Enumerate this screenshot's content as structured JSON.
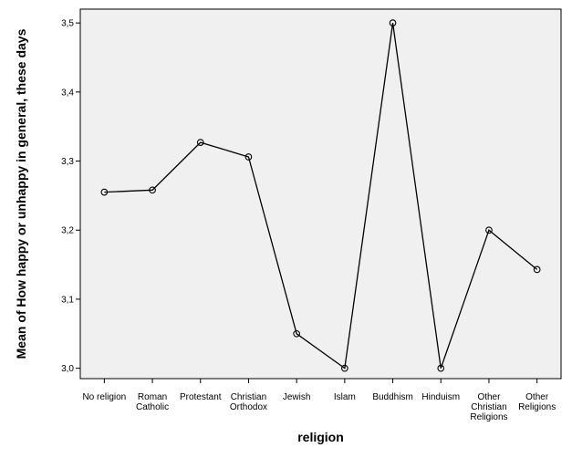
{
  "chart_data": {
    "type": "line",
    "title": "",
    "xlabel": "religion",
    "ylabel": "Mean of How happy or unhappy in general, these days",
    "categories": [
      [
        "No religion"
      ],
      [
        "Roman",
        "Catholic"
      ],
      [
        "Protestant"
      ],
      [
        "Christian",
        "Orthodox"
      ],
      [
        "Jewish"
      ],
      [
        "Islam"
      ],
      [
        "Buddhism"
      ],
      [
        "Hinduism"
      ],
      [
        "Other",
        "Christian",
        "Religions"
      ],
      [
        "Other",
        "Religions"
      ]
    ],
    "values": [
      3.255,
      3.258,
      3.327,
      3.306,
      3.05,
      3.0,
      3.5,
      3.0,
      3.2,
      3.143
    ],
    "ylim": [
      2.985,
      3.52
    ],
    "yticks": [
      "3,0",
      "3,1",
      "3,2",
      "3,3",
      "3,4",
      "3,5"
    ],
    "ytick_values": [
      3.0,
      3.1,
      3.2,
      3.3,
      3.4,
      3.5
    ],
    "grid": false,
    "legend": "none",
    "colors": {
      "plot_bg": "#f0f0f0",
      "line": "#000000"
    }
  }
}
